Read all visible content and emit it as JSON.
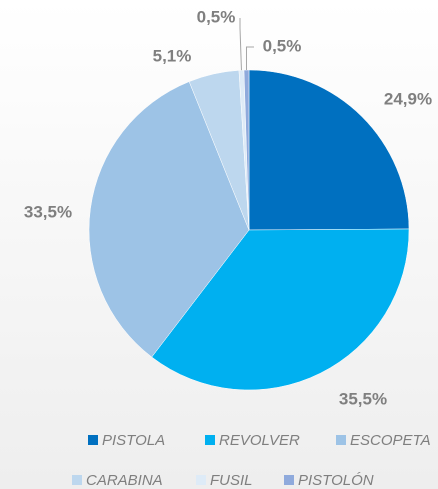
{
  "chart_data": {
    "type": "pie",
    "categories": [
      "PISTOLA",
      "REVOLVER",
      "ESCOPETA",
      "CARABINA",
      "FUSIL",
      "PISTOLÓN"
    ],
    "values": [
      24.9,
      35.5,
      33.5,
      5.1,
      0.5,
      0.5
    ],
    "value_labels": [
      "24,9%",
      "35,5%",
      "33,5%",
      "5,1%",
      "0,5%",
      "0,5%"
    ],
    "colors": [
      "#0070c0",
      "#00b0f0",
      "#9dc3e6",
      "#bdd7ee",
      "#deebf7",
      "#8faadc"
    ],
    "legend": "bottom"
  }
}
